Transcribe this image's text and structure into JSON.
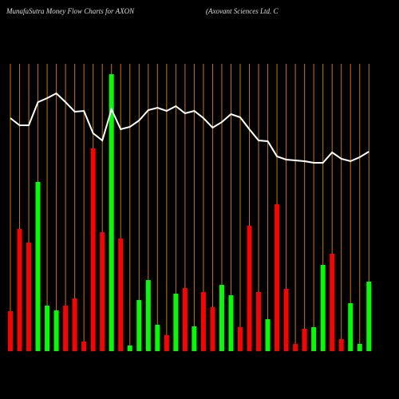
{
  "chart_data": {
    "type": "combo",
    "title": "MunafaSutra  Money Flow  Charts for AXON",
    "subtitle": "(Axovant Sciences Ltd. C",
    "categories": [
      null,
      null,
      null,
      null,
      null,
      null,
      null,
      null,
      null,
      null,
      null,
      null,
      null,
      null,
      null,
      null,
      null,
      null,
      null,
      null,
      null,
      null,
      null,
      null,
      null,
      null,
      null,
      null,
      null,
      null,
      null,
      null,
      null,
      null,
      null,
      null,
      null,
      null,
      null,
      null
    ],
    "grid_color": "#c87800",
    "series": [
      {
        "type": "bar",
        "values": [
          50,
          153,
          136,
          212,
          57,
          51,
          57,
          66,
          12,
          254,
          149,
          347,
          141,
          7,
          64,
          89,
          33,
          20,
          72,
          79,
          31,
          74,
          55,
          83,
          70,
          30,
          157,
          74,
          40,
          184,
          78,
          9,
          28,
          30,
          108,
          122,
          15,
          60,
          9,
          87
        ],
        "colors": [
          "#ff0000",
          "#ff0000",
          "#ff0000",
          "#00ff00",
          "#00ff00",
          "#00ff00",
          "#ff0000",
          "#ff0000",
          "#ff0000",
          "#ff0000",
          "#ff0000",
          "#00ff00",
          "#ff0000",
          "#00ff00",
          "#00ff00",
          "#00ff00",
          "#00ff00",
          "#ff0000",
          "#00ff00",
          "#ff0000",
          "#00ff00",
          "#ff0000",
          "#ff0000",
          "#00ff00",
          "#00ff00",
          "#ff0000",
          "#ff0000",
          "#ff0000",
          "#00ff00",
          "#ff0000",
          "#ff0000",
          "#ff0000",
          "#ff0000",
          "#00ff00",
          "#00ff00",
          "#ff0000",
          "#ff0000",
          "#00ff00",
          "#00ff00",
          "#00ff00"
        ]
      },
      {
        "type": "line",
        "color": "#ffffff",
        "values": [
          292,
          283,
          283,
          312,
          317,
          323,
          312,
          300,
          301,
          273,
          264,
          303,
          278,
          281,
          289,
          302,
          305,
          301,
          307,
          298,
          301,
          292,
          280,
          287,
          297,
          293,
          278,
          264,
          263,
          244,
          240,
          239,
          238,
          236,
          236,
          249,
          241,
          238,
          243,
          250
        ]
      }
    ]
  }
}
